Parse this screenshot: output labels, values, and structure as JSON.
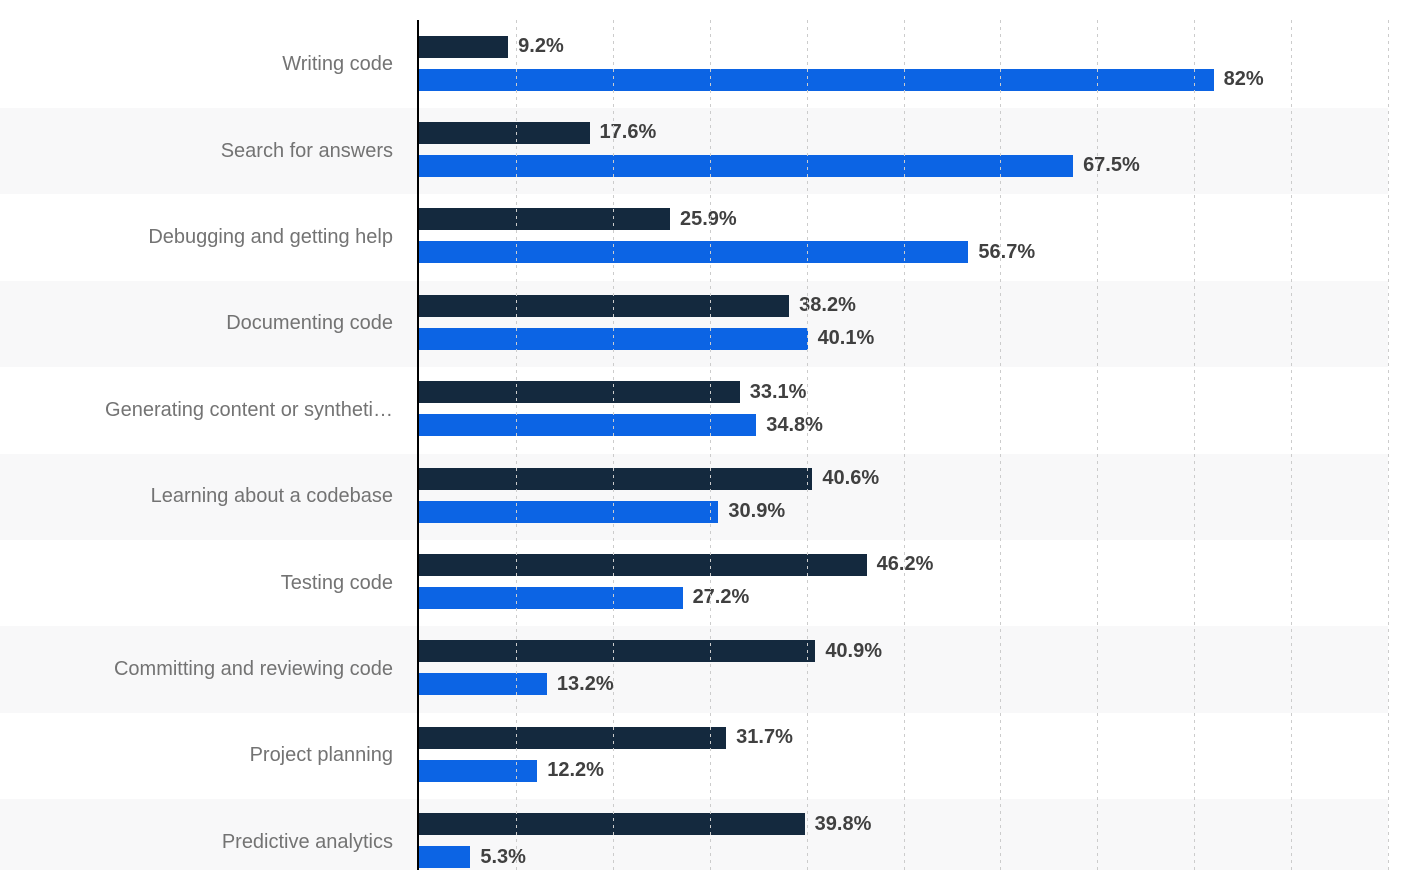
{
  "chart_data": {
    "type": "bar",
    "orientation": "horizontal",
    "title": "",
    "xlabel": "",
    "ylabel": "",
    "xlim": [
      0,
      100
    ],
    "gridline_interval_pct": 10,
    "grid": "dotted-vertical",
    "legend": "none",
    "row_banding": "alternate",
    "categories": [
      "Writing code",
      "Search for answers",
      "Debugging and getting help",
      "Documenting code",
      "Generating content or syntheti…",
      "Learning about a codebase",
      "Testing code",
      "Committing and reviewing code",
      "Project planning",
      "Predictive analytics"
    ],
    "series": [
      {
        "key": "series-dark",
        "color": "#14293e",
        "values": [
          9.2,
          17.6,
          25.9,
          38.2,
          33.1,
          40.6,
          46.2,
          40.9,
          31.7,
          39.8
        ],
        "labels": [
          "9.2%",
          "17.6%",
          "25.9%",
          "38.2%",
          "33.1%",
          "40.6%",
          "46.2%",
          "40.9%",
          "31.7%",
          "39.8%"
        ]
      },
      {
        "key": "series-blue",
        "color": "#0c64e4",
        "values": [
          82,
          67.5,
          56.7,
          40.1,
          34.8,
          30.9,
          27.2,
          13.2,
          12.2,
          5.3
        ],
        "labels": [
          "82%",
          "67.5%",
          "56.7%",
          "40.1%",
          "34.8%",
          "30.9%",
          "27.2%",
          "13.2%",
          "12.2%",
          "5.3%"
        ]
      }
    ],
    "styles": {
      "band_color": "#f8f8f9",
      "grid_color": "#cccccc",
      "axis_color": "#000000",
      "category_label_color": "#737373",
      "value_label_color": "#404040",
      "background_color": "#ffffff"
    }
  }
}
